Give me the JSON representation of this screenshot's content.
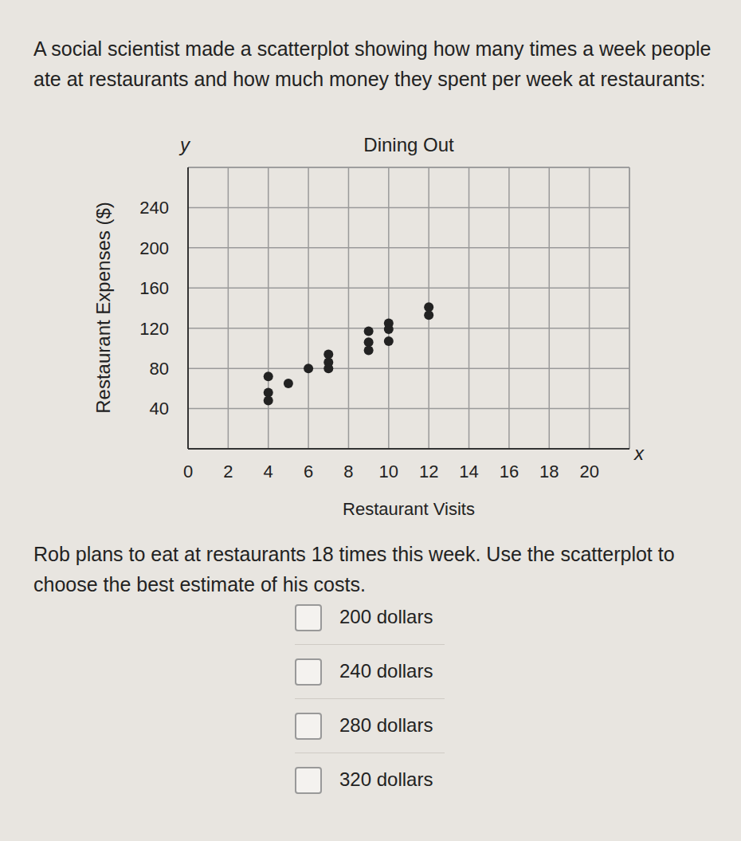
{
  "question": {
    "intro": "A social scientist made a scatterplot showing how many times a week people ate at restaurants and how much money they spent per week at restaurants:",
    "prompt": "Rob plans to eat at restaurants 18 times this week. Use the scatterplot to choose the best estimate of his costs.",
    "options": [
      "200 dollars",
      "240 dollars",
      "280 dollars",
      "320 dollars"
    ]
  },
  "chart_data": {
    "type": "scatter",
    "title": "Dining Out",
    "x_label": "Restaurant Visits",
    "y_label": "Restaurant Expenses ($)",
    "annotations": [
      {
        "text": "y"
      },
      {
        "text": "x"
      }
    ],
    "x": [
      4,
      4,
      4,
      5,
      6,
      7,
      7,
      7,
      9,
      9,
      9,
      10,
      10,
      10,
      12,
      12
    ],
    "values": [
      72,
      56,
      48,
      65,
      80,
      94,
      86,
      80,
      117,
      106,
      98,
      125,
      119,
      107,
      141,
      133
    ],
    "color": "#222222",
    "marker": "circle",
    "xlim": [
      0,
      22
    ],
    "xticks": [
      0,
      2,
      4,
      6,
      8,
      10,
      12,
      14,
      16,
      18,
      20
    ],
    "ylim": [
      0,
      280
    ],
    "yticks": [
      40,
      80,
      120,
      160,
      200,
      240
    ],
    "grid": true
  }
}
